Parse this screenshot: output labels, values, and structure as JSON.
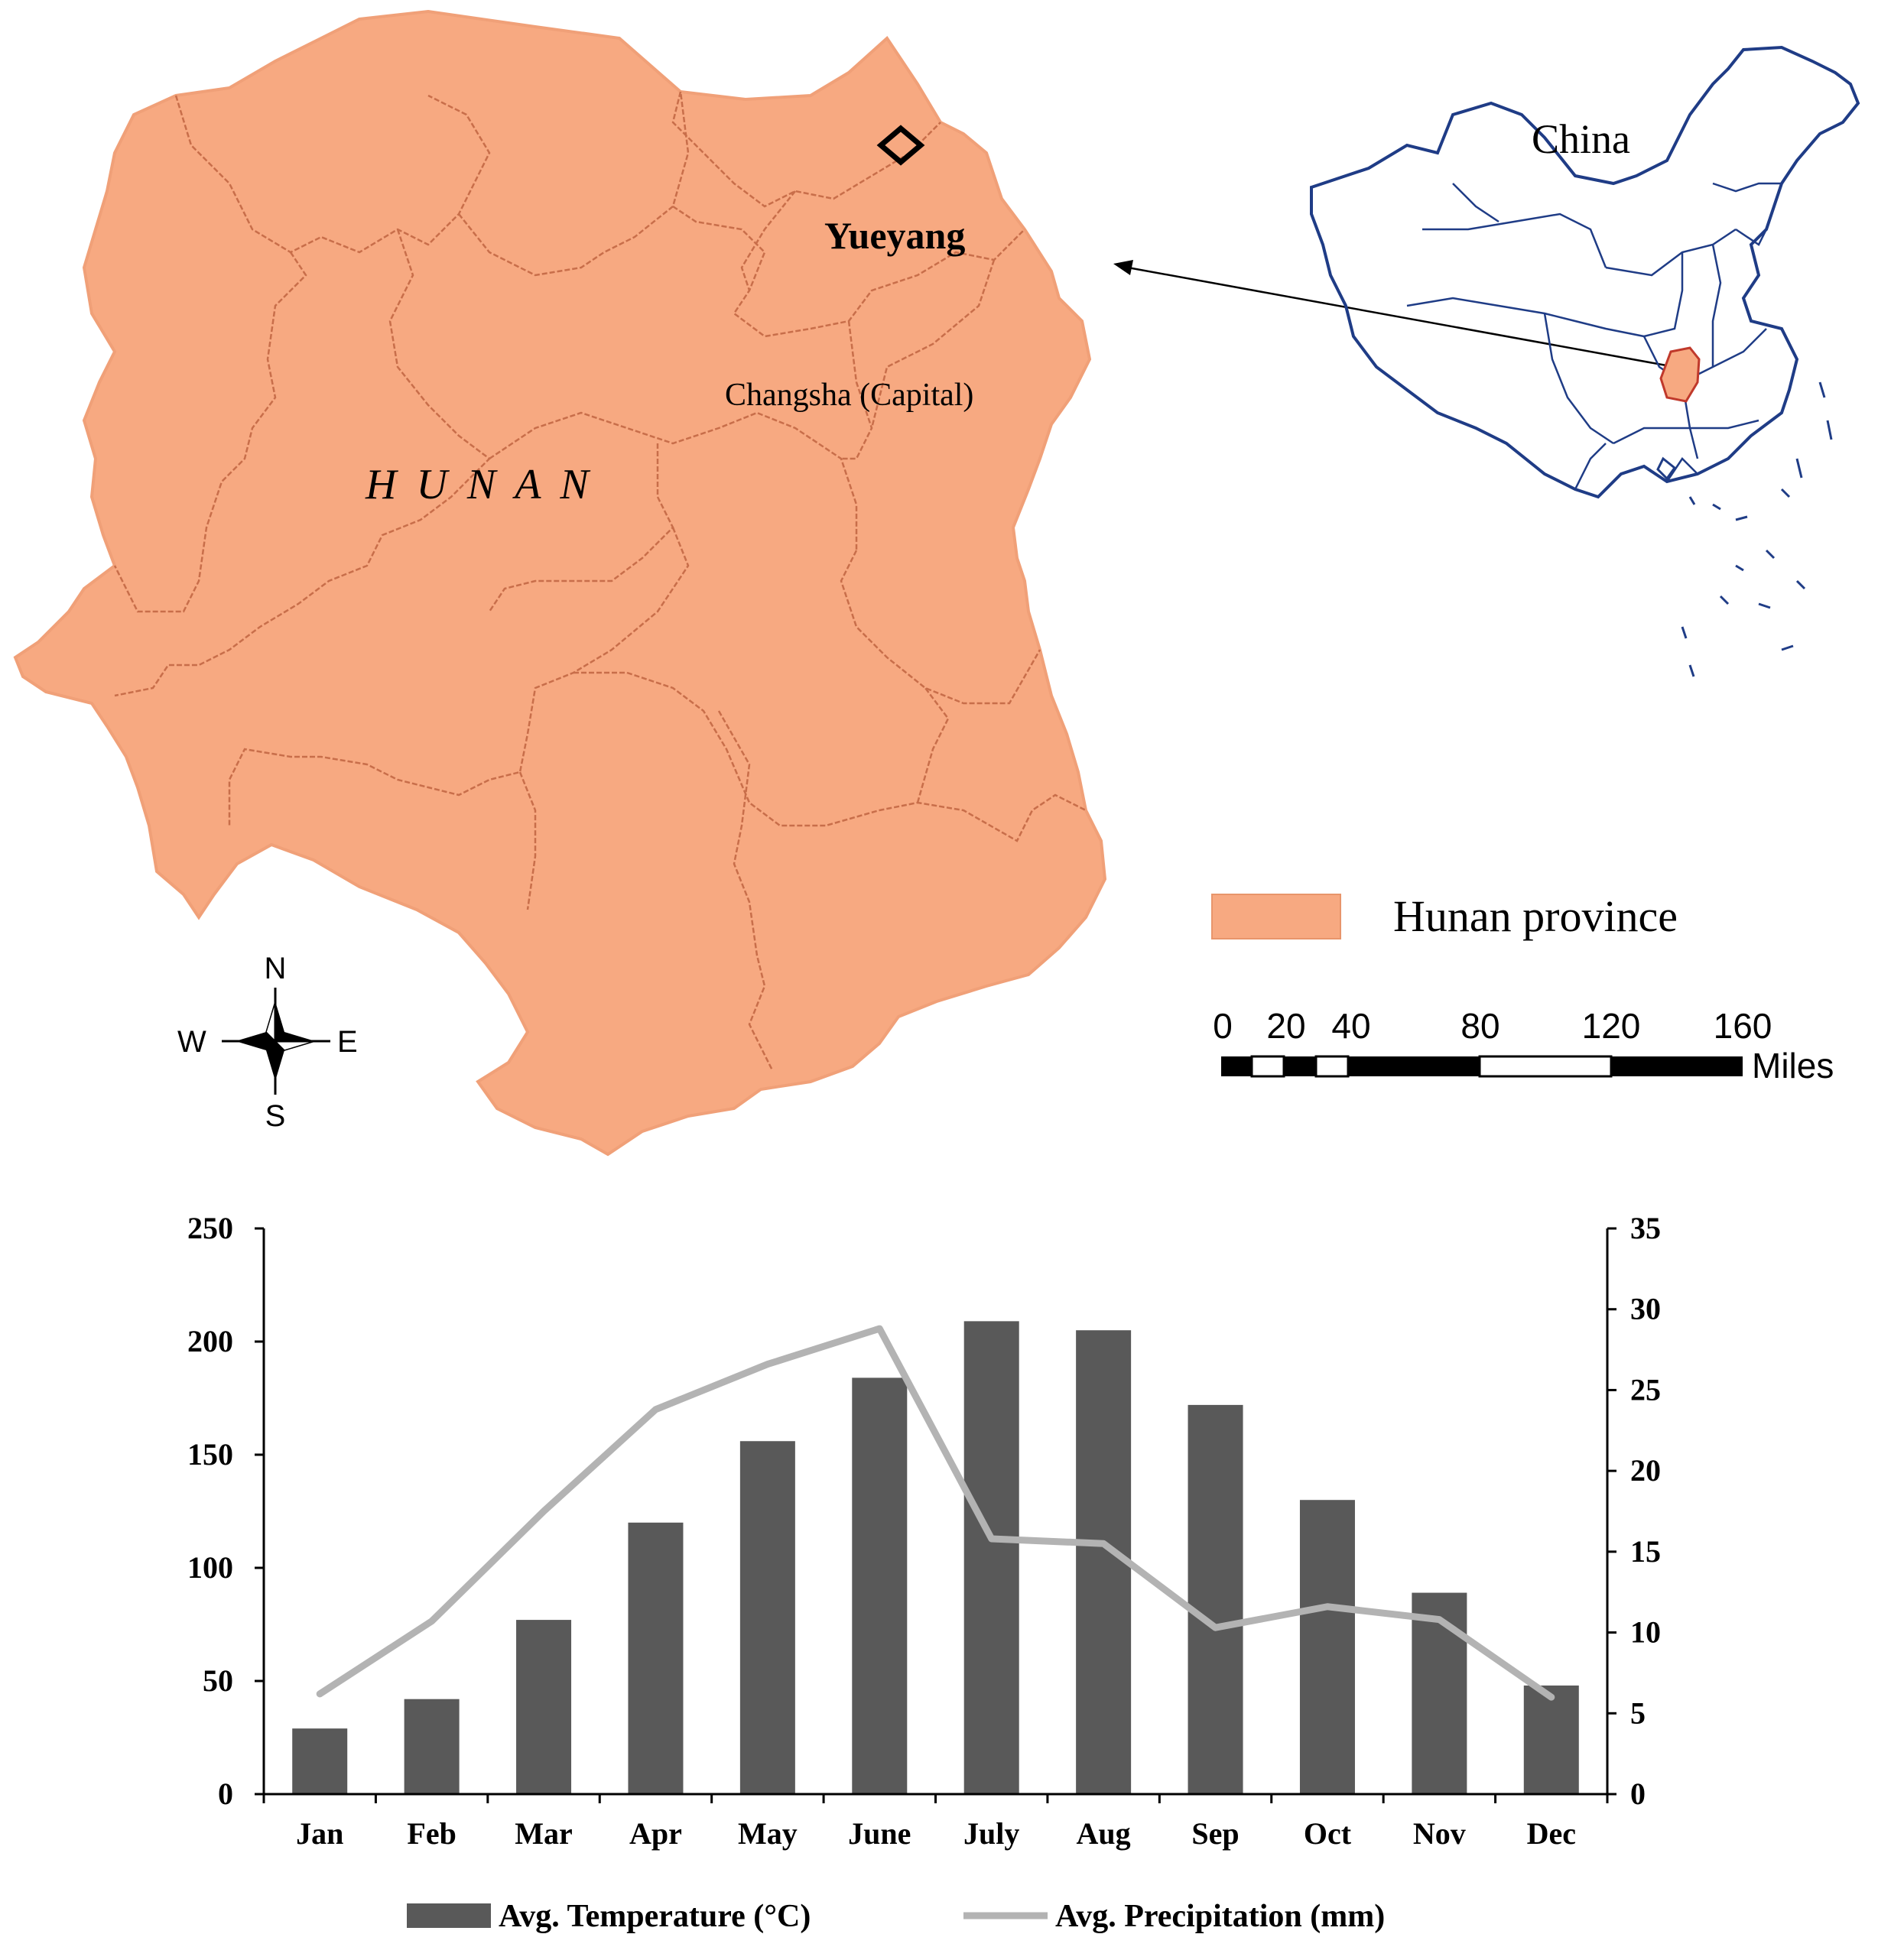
{
  "map": {
    "region_label": "H U N A N",
    "city_label": "Yueyang",
    "capital_label": "Changsha (Capital)",
    "country_label": "China",
    "fill_color": "#F7A981",
    "border_color": "#C86E4A",
    "inset_line_color": "#1F3C86",
    "compass": {
      "n": "N",
      "s": "S",
      "e": "E",
      "w": "W"
    },
    "legend": {
      "label": "Hunan province"
    },
    "scale": {
      "ticks": [
        "0",
        "20",
        "40",
        "80",
        "120",
        "160"
      ],
      "unit": "Miles"
    }
  },
  "chart_data": {
    "type": "bar",
    "categories": [
      "Jan",
      "Feb",
      "Mar",
      "Apr",
      "May",
      "June",
      "July",
      "Aug",
      "Sep",
      "Oct",
      "Nov",
      "Dec"
    ],
    "series": [
      {
        "name": "Avg. Temperature (°C)",
        "kind": "bar",
        "axis": "left",
        "color": "#595959",
        "values": [
          29,
          42,
          77,
          120,
          156,
          184,
          209,
          205,
          172,
          130,
          89,
          48
        ]
      },
      {
        "name": "Avg. Precipitation (mm)",
        "kind": "line",
        "axis": "right",
        "color": "#B3B3B3",
        "values": [
          6.2,
          10.7,
          17.5,
          23.8,
          26.6,
          28.8,
          15.8,
          15.5,
          10.3,
          11.6,
          10.8,
          6.0
        ]
      }
    ],
    "y_left": {
      "ylim": [
        0,
        250
      ],
      "ticks": [
        "0",
        "50",
        "100",
        "150",
        "200",
        "250"
      ]
    },
    "y_right": {
      "ylim": [
        0,
        35
      ],
      "ticks": [
        "0",
        "5",
        "10",
        "15",
        "20",
        "25",
        "30",
        "35"
      ]
    },
    "grid": false,
    "legend_position": "bottom"
  }
}
